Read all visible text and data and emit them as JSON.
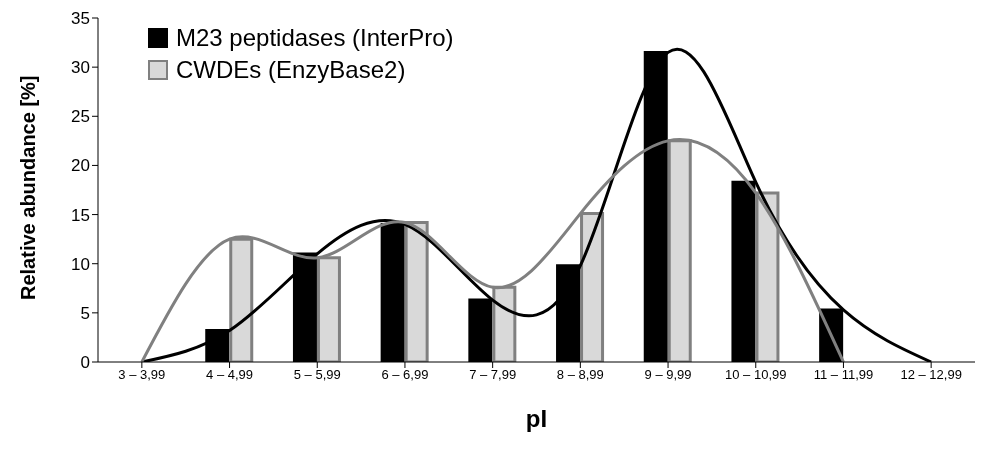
{
  "chart_data": {
    "type": "bar",
    "xlabel": "pI",
    "ylabel": "Relative abundance [%]",
    "categories": [
      "3 – 3,99",
      "4 – 4,99",
      "5 – 5,99",
      "6 – 6,99",
      "7 – 7,99",
      "8 – 8,99",
      "9 – 9,99",
      "10 – 10,99",
      "11 – 11,99",
      "12 – 12,99"
    ],
    "series": [
      {
        "name": "M23 peptidases (InterPro)",
        "color": "#000000",
        "values": [
          0,
          3.2,
          11,
          14,
          6.3,
          9.8,
          31.5,
          18.3,
          5.3,
          0
        ]
      },
      {
        "name": "CWDEs (EnzyBase2)",
        "color": "#d9d9d9",
        "values": [
          0,
          12.5,
          10.6,
          14.2,
          7.6,
          15.1,
          22.5,
          17.2,
          0,
          null
        ]
      },
      {
        "type": "line",
        "color": "#000000",
        "values": [
          0,
          3.2,
          11,
          14,
          6.3,
          9.8,
          31.5,
          18.3,
          5.3,
          0
        ]
      },
      {
        "type": "line",
        "color": "#808080",
        "values": [
          0,
          12.5,
          10.6,
          14.2,
          7.6,
          15.1,
          22.5,
          17.2,
          0,
          null
        ]
      }
    ],
    "ylim": [
      0,
      35
    ],
    "yticks": [
      0,
      5,
      10,
      15,
      20,
      25,
      30,
      35
    ],
    "legend": "top left",
    "marker": "none"
  }
}
